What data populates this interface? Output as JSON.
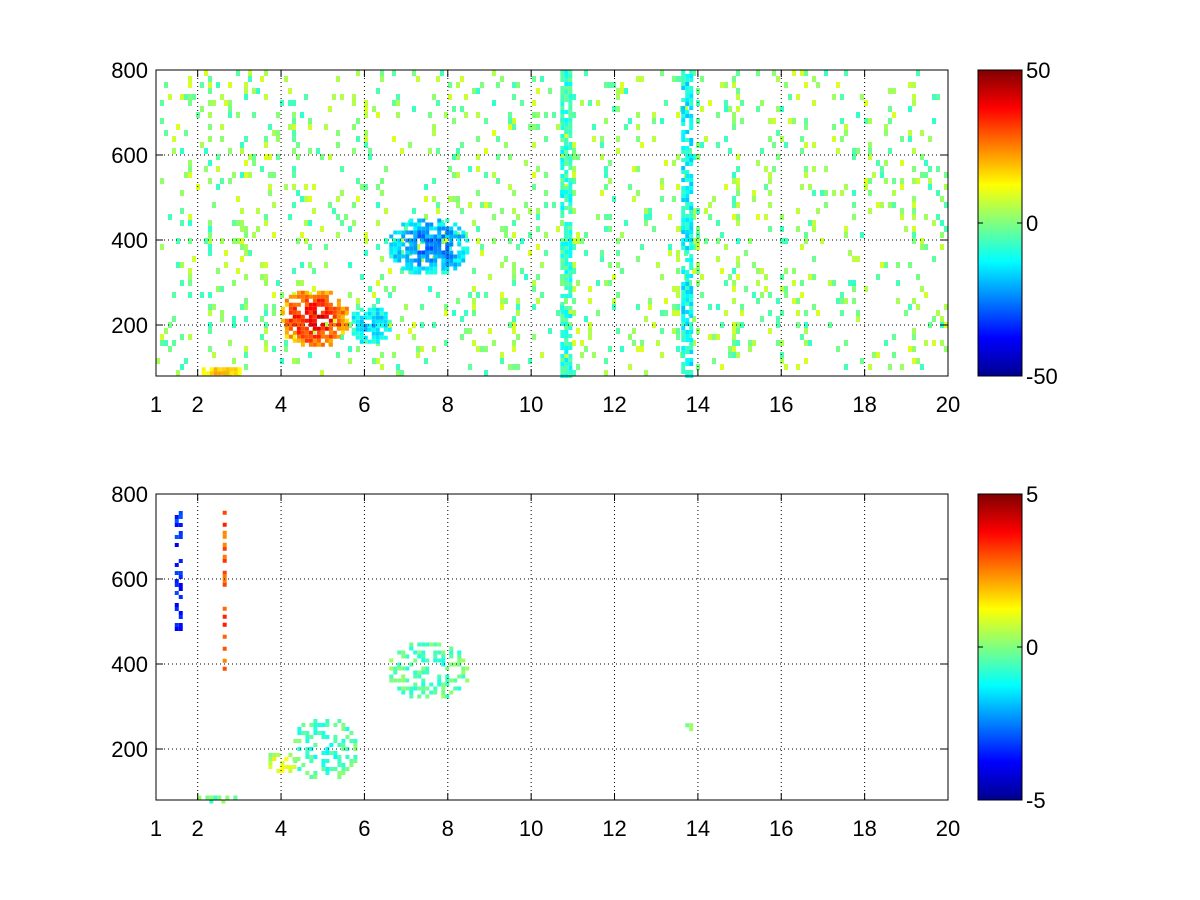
{
  "chart_data": [
    {
      "type": "heatmap",
      "title": "",
      "xlabel": "",
      "ylabel": "",
      "xlim": [
        1,
        20
      ],
      "ylim": [
        80,
        800
      ],
      "x_ticks": [
        1,
        2,
        4,
        6,
        8,
        10,
        12,
        14,
        16,
        18,
        20
      ],
      "x_tick_labels": [
        "1",
        "2",
        "4",
        "6",
        "8",
        "10",
        "12",
        "14",
        "16",
        "18",
        "20"
      ],
      "y_ticks": [
        200,
        400,
        600,
        800
      ],
      "y_tick_labels": [
        "200",
        "400",
        "600",
        "800"
      ],
      "grid": true,
      "colormap": "jet",
      "clim": [
        -50,
        50
      ],
      "colorbar_ticks": [
        -50,
        0,
        50
      ],
      "colorbar_tick_labels": [
        "-50",
        "0",
        "50"
      ],
      "background_value": "none (white where no data)",
      "features": [
        {
          "x_range": [
            3.9,
            5.6
          ],
          "y_range": [
            150,
            290
          ],
          "value": 38,
          "description": "positive blob"
        },
        {
          "x_range": [
            2.0,
            3.0
          ],
          "y_range": [
            80,
            110
          ],
          "value": 20
        },
        {
          "x_range": [
            6.5,
            8.5
          ],
          "y_range": [
            320,
            460
          ],
          "value": -25,
          "description": "negative blob"
        },
        {
          "x_range": [
            5.6,
            6.6
          ],
          "y_range": [
            160,
            250
          ],
          "value": -18
        },
        {
          "x_range": [
            13.6,
            13.8
          ],
          "y_range": [
            80,
            800
          ],
          "value": -12,
          "description": "vertical streak"
        },
        {
          "x_range": [
            10.7,
            10.9
          ],
          "y_range": [
            80,
            800
          ],
          "value": -8,
          "description": "vertical streak"
        },
        {
          "x_range": [
            1.0,
            20.0
          ],
          "y_range": [
            80,
            800
          ],
          "value": 0,
          "description": "scattered noise near zero"
        }
      ]
    },
    {
      "type": "heatmap",
      "title": "",
      "xlabel": "",
      "ylabel": "",
      "xlim": [
        1,
        20
      ],
      "ylim": [
        80,
        800
      ],
      "x_ticks": [
        1,
        2,
        4,
        6,
        8,
        10,
        12,
        14,
        16,
        18,
        20
      ],
      "x_tick_labels": [
        "1",
        "2",
        "4",
        "6",
        "8",
        "10",
        "12",
        "14",
        "16",
        "18",
        "20"
      ],
      "y_ticks": [
        200,
        400,
        600,
        800
      ],
      "y_tick_labels": [
        "200",
        "400",
        "600",
        "800"
      ],
      "grid": true,
      "colormap": "jet",
      "clim": [
        -5,
        5
      ],
      "colorbar_ticks": [
        -5,
        0,
        5
      ],
      "colorbar_tick_labels": [
        "-5",
        "0",
        "5"
      ],
      "background_value": "none (white where no data)",
      "features": [
        {
          "x_range": [
            4.2,
            5.8
          ],
          "y_range": [
            130,
            280
          ],
          "value": -0.8,
          "description": "sparse blob"
        },
        {
          "x_range": [
            3.6,
            4.4
          ],
          "y_range": [
            150,
            200
          ],
          "value": 1.0
        },
        {
          "x_range": [
            6.5,
            8.5
          ],
          "y_range": [
            320,
            460
          ],
          "value": -0.5,
          "description": "sparse blob"
        },
        {
          "x_range": [
            1.8,
            3.0
          ],
          "y_range": [
            80,
            100
          ],
          "value": -0.3
        },
        {
          "x_range": [
            1.45,
            1.55
          ],
          "y_range": [
            480,
            760
          ],
          "value": -3.5,
          "description": "thin streak"
        },
        {
          "x_range": [
            2.6,
            2.65
          ],
          "y_range": [
            380,
            770
          ],
          "value": 3.0,
          "description": "thin streak"
        },
        {
          "x_range": [
            13.6,
            13.8
          ],
          "y_range": [
            240,
            270
          ],
          "value": 0.5
        }
      ]
    }
  ]
}
